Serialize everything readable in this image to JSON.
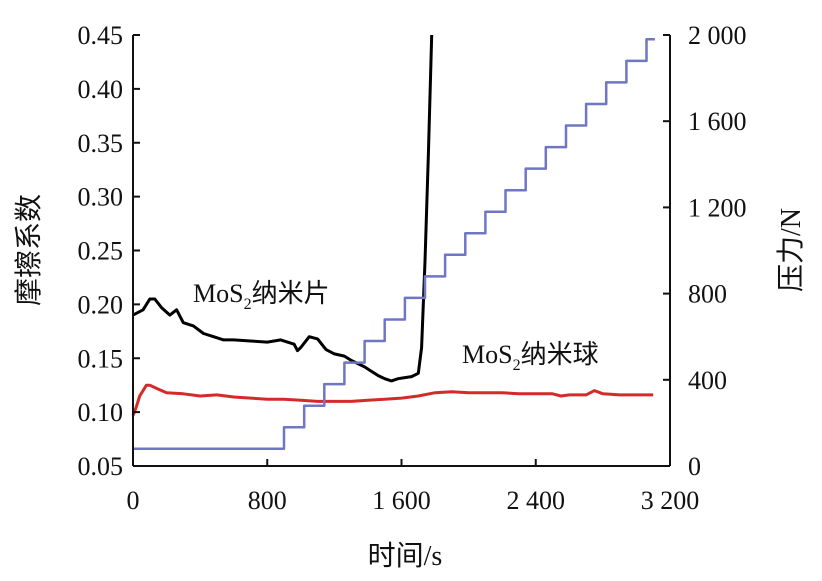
{
  "chart_data": {
    "type": "line",
    "xlabel": "时间/s",
    "ylabel_left": "摩擦系数",
    "ylabel_right": "压力/N",
    "xlim": [
      0,
      3200
    ],
    "ylim_left": [
      0.05,
      0.45
    ],
    "ylim_right": [
      0,
      2000
    ],
    "x_ticks": [
      0,
      800,
      1600,
      2400,
      3200
    ],
    "x_tick_labels": [
      "0",
      "800",
      "1 600",
      "2 400",
      "3 200"
    ],
    "y_left_ticks": [
      0.05,
      0.1,
      0.15,
      0.2,
      0.25,
      0.3,
      0.35,
      0.4,
      0.45
    ],
    "y_left_tick_labels": [
      "0.05",
      "0.10",
      "0.15",
      "0.20",
      "0.25",
      "0.30",
      "0.35",
      "0.40",
      "0.45"
    ],
    "y_right_ticks": [
      0,
      400,
      800,
      1200,
      1600,
      2000
    ],
    "y_right_tick_labels": [
      "0",
      "400",
      "800",
      "1 200",
      "1 600",
      "2 000"
    ],
    "grid": false,
    "annotations": {
      "nanosheet": {
        "main": "MoS",
        "sub": "2",
        "tail": "纳米片"
      },
      "nanosphere": {
        "main": "MoS",
        "sub": "2",
        "tail": "纳米球"
      }
    },
    "series": [
      {
        "key": "nanosheet",
        "axis": "left",
        "color": "#000000",
        "x": [
          0,
          60,
          100,
          130,
          170,
          220,
          260,
          300,
          360,
          420,
          480,
          540,
          600,
          700,
          800,
          880,
          960,
          980,
          1000,
          1050,
          1100,
          1150,
          1200,
          1260,
          1300,
          1340,
          1380,
          1420,
          1460,
          1500,
          1540,
          1580,
          1620,
          1660,
          1700,
          1720,
          1740,
          1760,
          1780
        ],
        "y": [
          0.19,
          0.195,
          0.205,
          0.205,
          0.197,
          0.19,
          0.195,
          0.183,
          0.18,
          0.173,
          0.17,
          0.167,
          0.167,
          0.166,
          0.165,
          0.167,
          0.163,
          0.157,
          0.16,
          0.17,
          0.168,
          0.158,
          0.154,
          0.152,
          0.148,
          0.145,
          0.142,
          0.138,
          0.134,
          0.131,
          0.129,
          0.131,
          0.132,
          0.133,
          0.136,
          0.16,
          0.24,
          0.34,
          0.45
        ]
      },
      {
        "key": "nanosphere",
        "axis": "left",
        "color": "#d42a2a",
        "x": [
          0,
          20,
          40,
          60,
          80,
          100,
          140,
          200,
          300,
          400,
          500,
          600,
          700,
          800,
          900,
          1000,
          1100,
          1200,
          1300,
          1400,
          1500,
          1600,
          1700,
          1800,
          1900,
          2000,
          2100,
          2200,
          2300,
          2400,
          2500,
          2550,
          2600,
          2700,
          2750,
          2800,
          2900,
          3000,
          3100
        ],
        "y": [
          0.097,
          0.105,
          0.115,
          0.12,
          0.125,
          0.125,
          0.122,
          0.118,
          0.117,
          0.115,
          0.116,
          0.114,
          0.113,
          0.112,
          0.112,
          0.111,
          0.11,
          0.11,
          0.11,
          0.111,
          0.112,
          0.113,
          0.115,
          0.118,
          0.119,
          0.118,
          0.118,
          0.118,
          0.117,
          0.117,
          0.117,
          0.115,
          0.116,
          0.116,
          0.12,
          0.117,
          0.116,
          0.116,
          0.116
        ]
      },
      {
        "key": "pressure",
        "axis": "right",
        "color": "#6f76c4",
        "step": true,
        "x": [
          0,
          900,
          900,
          1020,
          1020,
          1140,
          1140,
          1260,
          1260,
          1380,
          1380,
          1500,
          1500,
          1620,
          1620,
          1740,
          1740,
          1860,
          1860,
          1980,
          1980,
          2100,
          2100,
          2220,
          2220,
          2340,
          2340,
          2460,
          2460,
          2580,
          2580,
          2700,
          2700,
          2820,
          2820,
          2940,
          2940,
          3060,
          3060,
          3110
        ],
        "y": [
          80,
          80,
          180,
          180,
          280,
          280,
          380,
          380,
          480,
          480,
          580,
          580,
          680,
          680,
          780,
          780,
          880,
          880,
          980,
          980,
          1080,
          1080,
          1180,
          1180,
          1280,
          1280,
          1380,
          1380,
          1480,
          1480,
          1580,
          1580,
          1680,
          1680,
          1780,
          1780,
          1880,
          1880,
          1980,
          1980
        ]
      }
    ]
  }
}
